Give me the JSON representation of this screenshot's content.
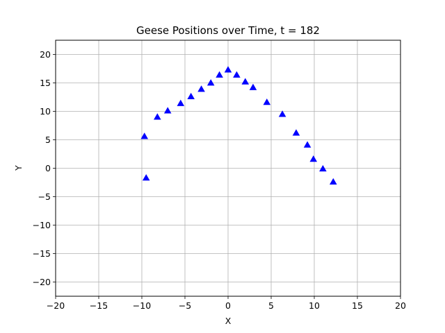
{
  "chart_data": {
    "type": "scatter",
    "title": "Geese Positions over Time, t = 182",
    "xlabel": "X",
    "ylabel": "Y",
    "xlim": [
      -20,
      20
    ],
    "ylim": [
      -22.5,
      22.5
    ],
    "xticks": [
      -20,
      -15,
      -10,
      -5,
      0,
      5,
      10,
      15,
      20
    ],
    "yticks": [
      -20,
      -15,
      -10,
      -5,
      0,
      5,
      10,
      15,
      20
    ],
    "xtick_labels": [
      "−20",
      "−15",
      "−10",
      "−5",
      "0",
      "5",
      "10",
      "15",
      "20"
    ],
    "ytick_labels": [
      "−20",
      "−15",
      "−10",
      "−5",
      "0",
      "5",
      "10",
      "15",
      "20"
    ],
    "grid": true,
    "marker": "triangle-up",
    "color": "#0000ff",
    "series": [
      {
        "x": [
          -9.7,
          -9.5,
          -8.2,
          -7.0,
          -5.5,
          -4.3,
          -3.1,
          -2.0,
          -1.0,
          0.0,
          1.0,
          2.0,
          2.9,
          4.5,
          6.3,
          7.9,
          9.2,
          9.9,
          11.0,
          12.2
        ],
        "y": [
          5.6,
          -1.7,
          9.0,
          10.1,
          11.4,
          12.6,
          13.9,
          15.0,
          16.4,
          17.3,
          16.4,
          15.2,
          14.2,
          11.6,
          9.5,
          6.2,
          4.1,
          1.6,
          -0.1,
          -2.4
        ]
      }
    ]
  }
}
